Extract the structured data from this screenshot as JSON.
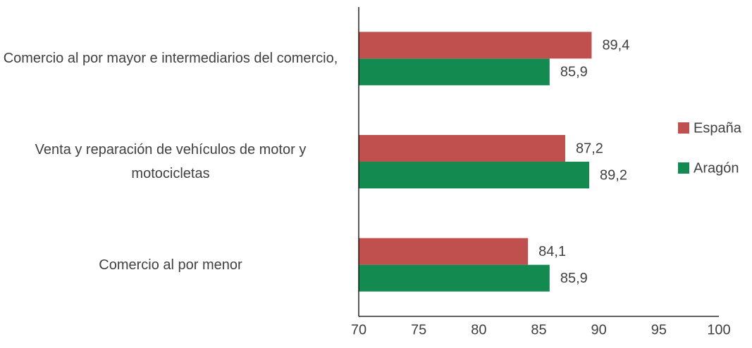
{
  "chart_data": {
    "type": "bar",
    "orientation": "horizontal",
    "categories": [
      "Comercio al por mayor e intermediarios del comercio,",
      "Venta y reparación de vehículos de motor y motocicletas",
      "Comercio al por menor"
    ],
    "series": [
      {
        "name": "España",
        "color": "#c0504d",
        "values": [
          89.4,
          87.2,
          84.1
        ],
        "value_labels": [
          "89,4",
          "87,2",
          "84,1"
        ]
      },
      {
        "name": "Aragón",
        "color": "#138a50",
        "values": [
          85.9,
          89.2,
          85.9
        ],
        "value_labels": [
          "85,9",
          "89,2",
          "85,9"
        ]
      }
    ],
    "xlim": [
      70,
      100
    ],
    "xticks": [
      70,
      75,
      80,
      85,
      90,
      95,
      100
    ],
    "grid": false,
    "legend": "right"
  }
}
